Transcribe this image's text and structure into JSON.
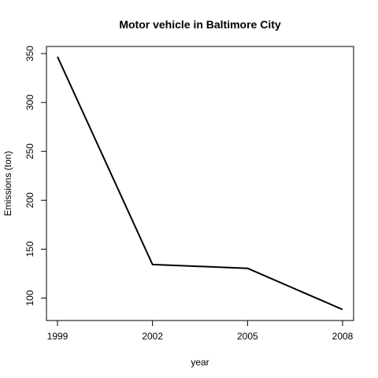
{
  "chart_data": {
    "type": "line",
    "title": "Motor vehicle in Baltimore City",
    "xlabel": "year",
    "ylabel": "Emissions (ton)",
    "x": [
      1999,
      2002,
      2005,
      2008
    ],
    "series": [
      {
        "values": [
          346.8,
          134.3,
          130.4,
          88.3
        ]
      }
    ],
    "xlim": [
      1999,
      2008
    ],
    "ylim": [
      88.3,
      346.8
    ],
    "xticks": [
      1999,
      2002,
      2005,
      2008
    ],
    "yticks": [
      100,
      150,
      200,
      250,
      300,
      350
    ],
    "grid": false,
    "line_color": "#000000"
  }
}
